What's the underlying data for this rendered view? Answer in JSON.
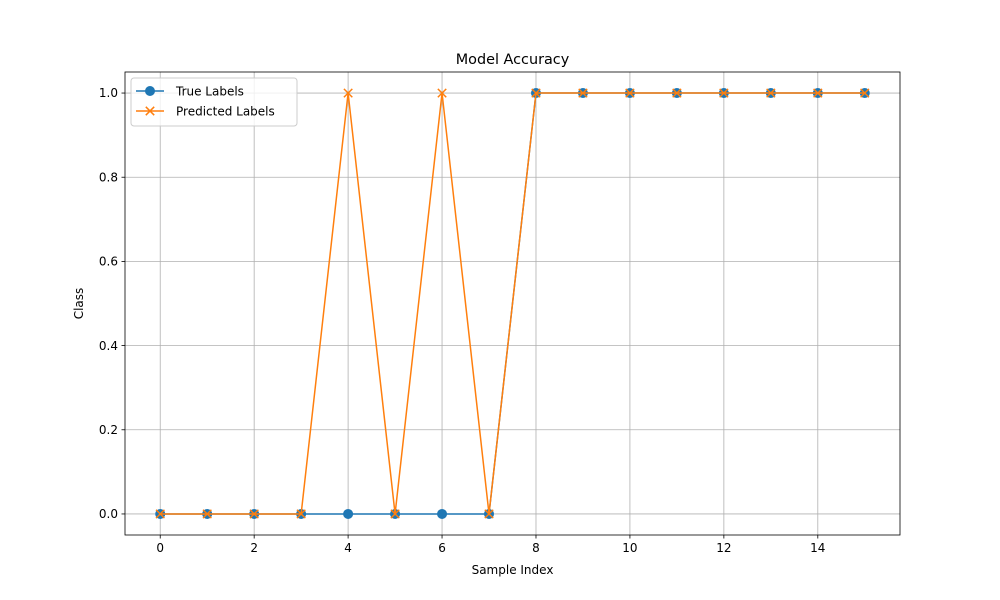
{
  "chart_data": {
    "type": "line",
    "title": "Model Accuracy",
    "xlabel": "Sample Index",
    "ylabel": "Class",
    "xlim": [
      -0.75,
      15.75
    ],
    "ylim": [
      -0.05,
      1.05
    ],
    "xticks": [
      0,
      2,
      4,
      6,
      8,
      10,
      12,
      14
    ],
    "xtick_labels": [
      "0",
      "2",
      "4",
      "6",
      "8",
      "10",
      "12",
      "14"
    ],
    "yticks": [
      0.0,
      0.2,
      0.4,
      0.6,
      0.8,
      1.0
    ],
    "ytick_labels": [
      "0.0",
      "0.2",
      "0.4",
      "0.6",
      "0.8",
      "1.0"
    ],
    "grid": true,
    "legend_position": "upper-left",
    "x": [
      0,
      1,
      2,
      3,
      4,
      5,
      6,
      7,
      8,
      9,
      10,
      11,
      12,
      13,
      14,
      15
    ],
    "series": [
      {
        "name": "True Labels",
        "color": "#1f77b4",
        "marker": "circle",
        "values": [
          0,
          0,
          0,
          0,
          0,
          0,
          0,
          0,
          1,
          1,
          1,
          1,
          1,
          1,
          1,
          1
        ]
      },
      {
        "name": "Predicted Labels",
        "color": "#ff7f0e",
        "marker": "x",
        "values": [
          0,
          0,
          0,
          0,
          1,
          0,
          1,
          0,
          1,
          1,
          1,
          1,
          1,
          1,
          1,
          1
        ]
      }
    ]
  }
}
